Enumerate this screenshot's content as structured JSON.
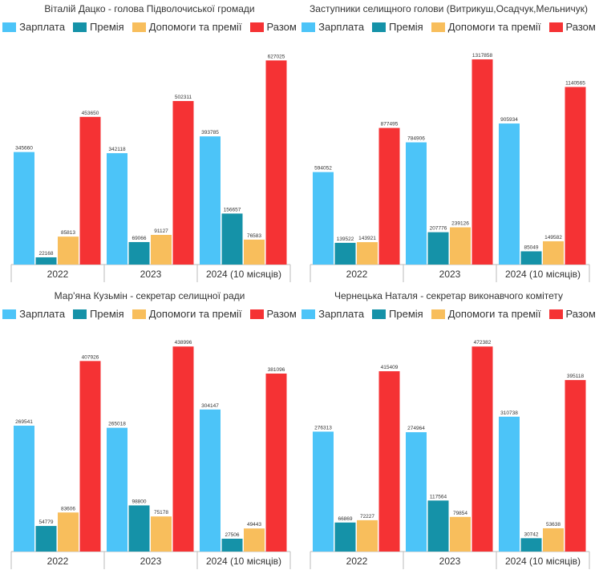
{
  "colors": {
    "salary": "#4cc4f8",
    "bonus": "#1592a8",
    "aid": "#f8be5c",
    "total": "#f53234"
  },
  "chart_data": [
    {
      "type": "bar",
      "title": "Віталій Дацко - голова Підволочиської громади",
      "categories": [
        "2022",
        "2023",
        "2024 (10 місяців)"
      ],
      "series": [
        {
          "name": "Зарплата",
          "values": [
            345660,
            342118,
            393785
          ]
        },
        {
          "name": "Премія",
          "values": [
            22168,
            69066,
            156657
          ]
        },
        {
          "name": "Допомоги та премії",
          "values": [
            85813,
            91127,
            76583
          ]
        },
        {
          "name": "Разом",
          "values": [
            453650,
            502311,
            627025
          ]
        }
      ],
      "ylim": [
        0,
        660000
      ],
      "grid": false,
      "legend": "top"
    },
    {
      "type": "bar",
      "title": "Заступники селищного голови (Витрикуш,Осадчук,Мельничук)",
      "categories": [
        "2022",
        "2023",
        "2024 (10 місяців)"
      ],
      "series": [
        {
          "name": "Зарплата",
          "values": [
            594052,
            784906,
            905934
          ]
        },
        {
          "name": "Премія",
          "values": [
            139522,
            207776,
            85049
          ]
        },
        {
          "name": "Допомоги та премії",
          "values": [
            143921,
            239126,
            149582
          ]
        },
        {
          "name": "Разом",
          "values": [
            877495,
            1317858,
            1140565
          ]
        }
      ],
      "ylim": [
        0,
        1380000
      ],
      "grid": false,
      "legend": "top"
    },
    {
      "type": "bar",
      "title": "Мар'яна Кузьмін - секретар селищної ради",
      "categories": [
        "2022",
        "2023",
        "2024 (10 місяців)"
      ],
      "series": [
        {
          "name": "Зарплата",
          "values": [
            269541,
            265018,
            304147
          ]
        },
        {
          "name": "Премія",
          "values": [
            54779,
            98800,
            27506
          ]
        },
        {
          "name": "Допомоги та премії",
          "values": [
            83606,
            75178,
            49443
          ]
        },
        {
          "name": "Разом",
          "values": [
            407926,
            438996,
            381096
          ]
        }
      ],
      "ylim": [
        0,
        460000
      ],
      "grid": false,
      "legend": "top"
    },
    {
      "type": "bar",
      "title": "Чернецька Наталя - секретар виконавчого комітету",
      "categories": [
        "2022",
        "2023",
        "2024 (10 місяців)"
      ],
      "series": [
        {
          "name": "Зарплата",
          "values": [
            276313,
            274964,
            310738
          ]
        },
        {
          "name": "Премія",
          "values": [
            66869,
            117564,
            30742
          ]
        },
        {
          "name": "Допомоги та премії",
          "values": [
            72227,
            79854,
            53638
          ]
        },
        {
          "name": "Разом",
          "values": [
            415409,
            472382,
            395118
          ]
        }
      ],
      "ylim": [
        0,
        495000
      ],
      "grid": false,
      "legend": "top"
    }
  ]
}
